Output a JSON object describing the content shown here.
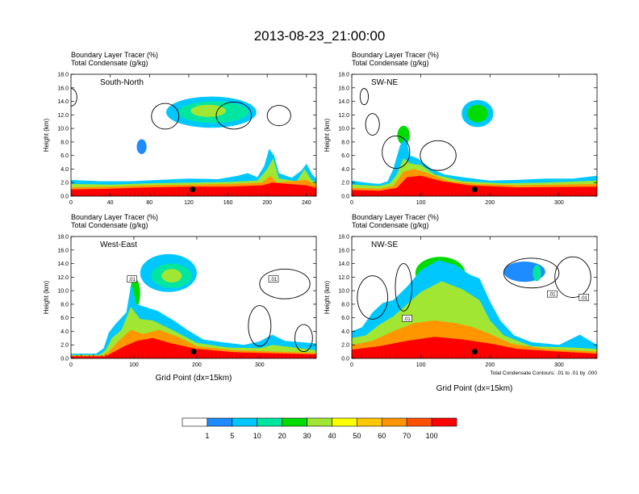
{
  "title": "2013-08-23_21:00:00",
  "field_labels": [
    "Boundary Layer Tracer   (%)",
    "Total Condensate   (g/kg)"
  ],
  "contour_info": "Total Condensate Contours: .01 to .01 by .000",
  "colorbar": {
    "labels": [
      "1",
      "5",
      "10",
      "20",
      "30",
      "40",
      "50",
      "60",
      "70",
      "100"
    ],
    "colors": [
      "#ffffff",
      "#1e8cff",
      "#00c8ff",
      "#00e6a0",
      "#00dc00",
      "#a0e632",
      "#ffff00",
      "#ffc800",
      "#ff9600",
      "#ff5000",
      "#ff0000"
    ]
  },
  "chart_data": [
    {
      "type": "heatmap",
      "panel_label": "South-North",
      "ylabel": "Height (km)",
      "xlabel": "",
      "xlim": [
        0,
        250
      ],
      "ylim": [
        0,
        18
      ],
      "xticks": [
        0,
        40,
        80,
        120,
        160,
        200,
        240
      ],
      "yticks": [
        "0.0",
        "2.0",
        "4.0",
        "6.0",
        "8.0",
        "10.0",
        "12.0",
        "14.0",
        "16.0",
        "18.0"
      ],
      "marker": {
        "x": 124,
        "y": 1.0
      },
      "contour_labels": []
    },
    {
      "type": "heatmap",
      "panel_label": "SW-NE",
      "ylabel": "Height (km)",
      "xlabel": "",
      "xlim": [
        0,
        355
      ],
      "ylim": [
        0,
        18
      ],
      "xticks": [
        0,
        100,
        200,
        300
      ],
      "yticks": [
        "0.0",
        "2.0",
        "4.0",
        "6.0",
        "8.0",
        "10.0",
        "12.0",
        "14.0",
        "16.0",
        "18.0"
      ],
      "marker": {
        "x": 178,
        "y": 1.0
      },
      "contour_labels": []
    },
    {
      "type": "heatmap",
      "panel_label": "West-East",
      "ylabel": "Height (km)",
      "xlabel": "Grid Point (dx=15km)",
      "xlim": [
        0,
        390
      ],
      "ylim": [
        0,
        18
      ],
      "xticks": [
        0,
        100,
        200,
        300
      ],
      "yticks": [
        "0.0",
        "2.0",
        "4.0",
        "6.0",
        "8.0",
        "10.0",
        "12.0",
        "14.0",
        "16.0",
        "18.0"
      ],
      "marker": {
        "x": 195,
        "y": 1.0
      },
      "contour_labels": [
        {
          "x": 97,
          "y": 11.6,
          "text": ".01"
        },
        {
          "x": 322,
          "y": 11.6,
          "text": ".01"
        }
      ]
    },
    {
      "type": "heatmap",
      "panel_label": "NW-SE",
      "ylabel": "Height (km)",
      "xlabel": "Grid Point (dx=15km)",
      "xlim": [
        0,
        355
      ],
      "ylim": [
        0,
        18
      ],
      "xticks": [
        0,
        100,
        200,
        300
      ],
      "yticks": [
        "0.0",
        "2.0",
        "4.0",
        "6.0",
        "8.0",
        "10.0",
        "12.0",
        "14.0",
        "16.0",
        "18.0"
      ],
      "marker": {
        "x": 178,
        "y": 1.0
      },
      "contour_labels": [
        {
          "x": 80,
          "y": 5.8,
          "text": ".01"
        },
        {
          "x": 290,
          "y": 9.4,
          "text": ".01"
        },
        {
          "x": 336,
          "y": 8.9,
          "text": ".01"
        }
      ]
    }
  ]
}
